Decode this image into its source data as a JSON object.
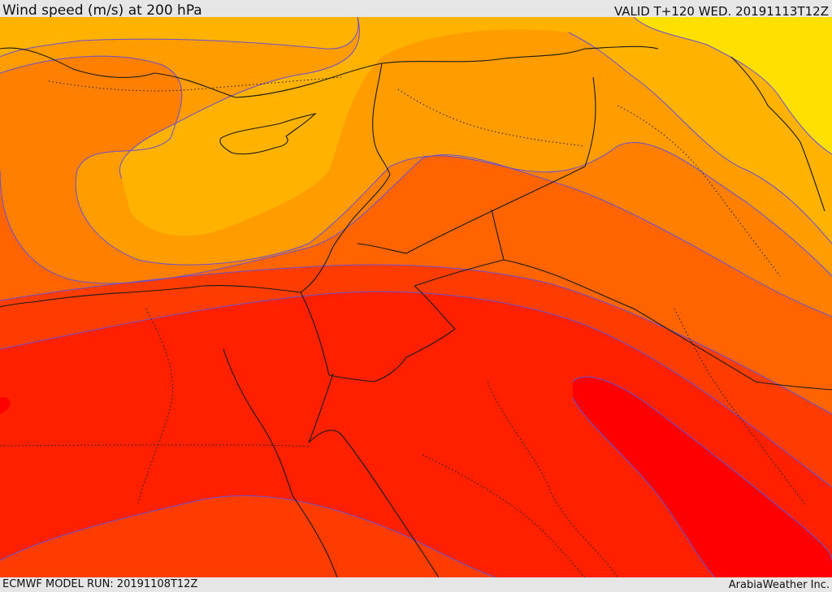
{
  "header": {
    "title": "Wind speed (m/s) at 200 hPa",
    "valid": "VALID T+120 WED. 20191113T12Z"
  },
  "footer": {
    "model_run": "ECMWF MODEL RUN: 20191108T12Z",
    "credit": "ArabiaWeather Inc."
  },
  "colors": {
    "band_yellow": "#ffe000",
    "band_amber": "#ffb300",
    "band_orange_light": "#ff9c00",
    "band_orange": "#ff8000",
    "band_orange_deep": "#ff6400",
    "band_red_orange": "#ff3c00",
    "band_red": "#ff2000",
    "band_core_red": "#ff0000",
    "contour_line": "#6a4fd0",
    "coastline": "#1a1a1a"
  }
}
